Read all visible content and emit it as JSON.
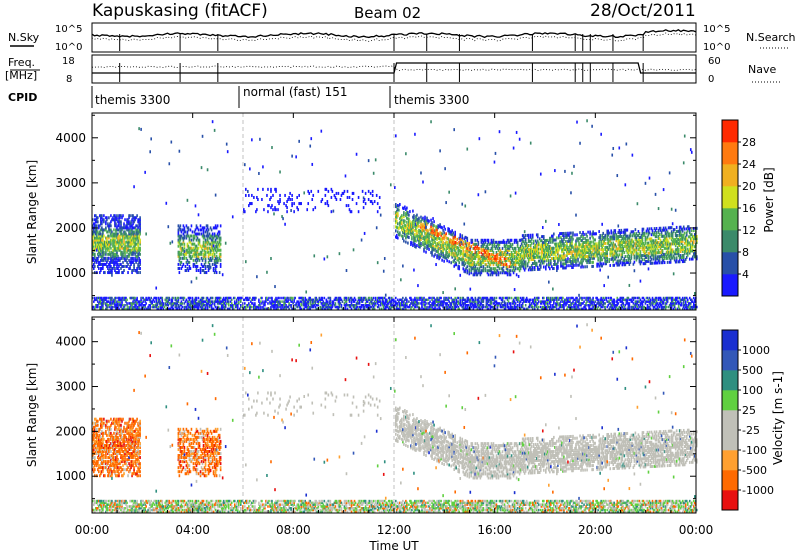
{
  "header": {
    "station": "Kapuskasing (fitACF)",
    "beam": "Beam 02",
    "date": "28/Oct/2011"
  },
  "strip_labels": {
    "nsky_line1": "N.Sky",
    "nsky_tick_hi": "10^5",
    "nsky_tick_lo": "10^0",
    "nsearch_label": "N.Search",
    "nsearch_tick_hi": "10^5",
    "nsearch_tick_lo": "10^0",
    "freq_line1": "Freq.",
    "freq_line2": "[MHz]",
    "freq_tick_hi": "18",
    "freq_tick_lo": "8",
    "nave_label": "Nave",
    "nave_tick_hi": "60",
    "nave_tick_lo": "0",
    "cpid_label": "CPID"
  },
  "cpid_segments": [
    {
      "label": "themis 3300",
      "start_hour": 0
    },
    {
      "label": "normal (fast) 151",
      "start_hour": 6
    },
    {
      "label": "themis 3300",
      "start_hour": 12
    }
  ],
  "colors": {
    "power": [
      "#1a1aff",
      "#2850a8",
      "#3b8a6a",
      "#55b24f",
      "#cfe01e",
      "#f0b020",
      "#ff7a10",
      "#ff2a00"
    ],
    "velocity": [
      "#e81010",
      "#ff6a00",
      "#ffa030",
      "#c0c0b8",
      "#c0c0b8",
      "#60d040",
      "#2f8f80",
      "#3358b8",
      "#1a2fd0"
    ]
  },
  "chart_data": [
    {
      "type": "heatmap",
      "name": "power",
      "ylabel": "Slant Range [km]",
      "ylim": [
        180,
        4550
      ],
      "yticks": [
        "1000",
        "2000",
        "3000",
        "4000"
      ],
      "xlim": [
        0,
        24
      ],
      "colorbar_title": "Power [dB]",
      "colorbar_ticks": [
        "4",
        "8",
        "12",
        "16",
        "20",
        "24",
        "28"
      ],
      "colorbar_range": [
        0,
        32
      ]
    },
    {
      "type": "heatmap",
      "name": "velocity",
      "ylabel": "Slant Range [km]",
      "ylim": [
        180,
        4550
      ],
      "yticks": [
        "1000",
        "2000",
        "3000",
        "4000"
      ],
      "xlim": [
        0,
        24
      ],
      "xlabel": "Time UT",
      "xticks": [
        "00:00",
        "04:00",
        "08:00",
        "12:00",
        "16:00",
        "20:00",
        "00:00"
      ],
      "colorbar_title": "Velocity [m s-1]",
      "colorbar_ticks": [
        "-1000",
        "-500",
        "-100",
        "-25",
        "25",
        "100",
        "500",
        "1000"
      ]
    }
  ]
}
